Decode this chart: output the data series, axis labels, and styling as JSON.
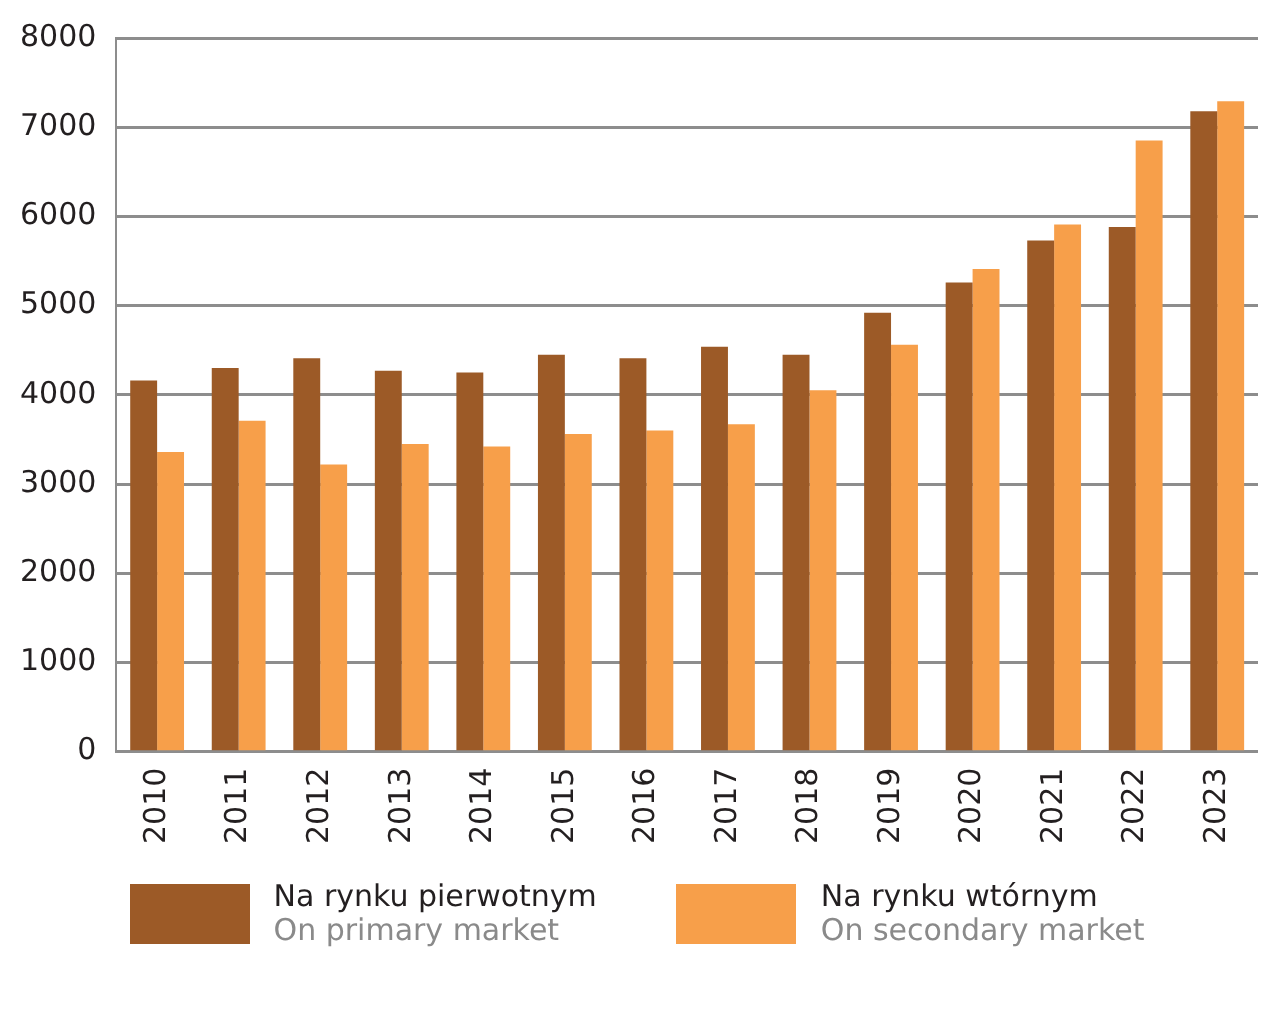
{
  "chart_data": {
    "type": "bar",
    "categories": [
      "2010",
      "2011",
      "2012",
      "2013",
      "2014",
      "2015",
      "2016",
      "2017",
      "2018",
      "2019",
      "2020",
      "2021",
      "2022",
      "2023"
    ],
    "series": [
      {
        "name": "Na rynku pierwotnym\nOn primary market",
        "color": "#9c5a27",
        "values": [
          4160,
          4300,
          4410,
          4270,
          4250,
          4450,
          4410,
          4540,
          4450,
          4920,
          5260,
          5730,
          5880,
          7180
        ]
      },
      {
        "name": "Na rynku wtórnym\nOn secondary market",
        "color": "#f79f4a",
        "values": [
          3360,
          3710,
          3220,
          3450,
          3420,
          3560,
          3600,
          3670,
          4050,
          4560,
          5410,
          5910,
          6850,
          7290
        ]
      }
    ],
    "ylim": [
      0,
      8000
    ],
    "yticks": [
      0,
      1000,
      2000,
      3000,
      4000,
      5000,
      6000,
      7000,
      8000
    ],
    "grid": "y",
    "legend": "bottom"
  }
}
